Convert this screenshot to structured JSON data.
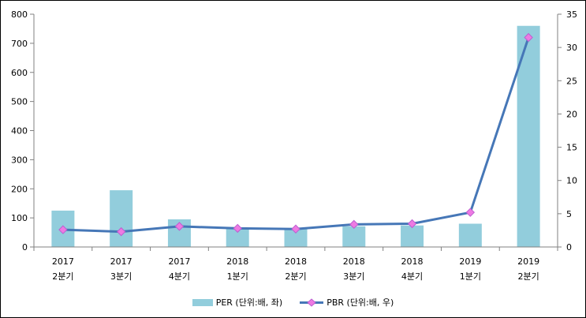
{
  "chart_data": {
    "type": "combo-bar-line",
    "title": "",
    "categories": [
      [
        "2017",
        "2분기"
      ],
      [
        "2017",
        "3분기"
      ],
      [
        "2017",
        "4분기"
      ],
      [
        "2018",
        "1분기"
      ],
      [
        "2018",
        "2분기"
      ],
      [
        "2018",
        "3분기"
      ],
      [
        "2018",
        "4분기"
      ],
      [
        "2019",
        "1분기"
      ],
      [
        "2019",
        "2분기"
      ]
    ],
    "series": [
      {
        "name": "PER (단위:배, 좌)",
        "type": "bar",
        "axis": "left",
        "color": "#92CDDC",
        "values": [
          125,
          195,
          95,
          64,
          63,
          71,
          74,
          80,
          760
        ]
      },
      {
        "name": "PBR (단위:배, 우)",
        "type": "line",
        "axis": "right",
        "color": "#4677B7",
        "marker": "diamond",
        "marker_fill": "#EE7AE2",
        "marker_stroke": "#BC5FD0",
        "values": [
          2.6,
          2.3,
          3.1,
          2.8,
          2.7,
          3.4,
          3.5,
          5.2,
          31.5
        ]
      }
    ],
    "left_axis": {
      "min": 0,
      "max": 800,
      "step": 100,
      "tick_labels": [
        "0",
        "100",
        "200",
        "300",
        "400",
        "500",
        "600",
        "700",
        "800"
      ]
    },
    "right_axis": {
      "min": 0,
      "max": 35,
      "step": 5,
      "tick_labels": [
        "0",
        "5",
        "10",
        "15",
        "20",
        "25",
        "30",
        "35"
      ]
    },
    "axis_color": "#808080",
    "text_color": "#000000",
    "grid": false,
    "legend_position": "bottom"
  }
}
